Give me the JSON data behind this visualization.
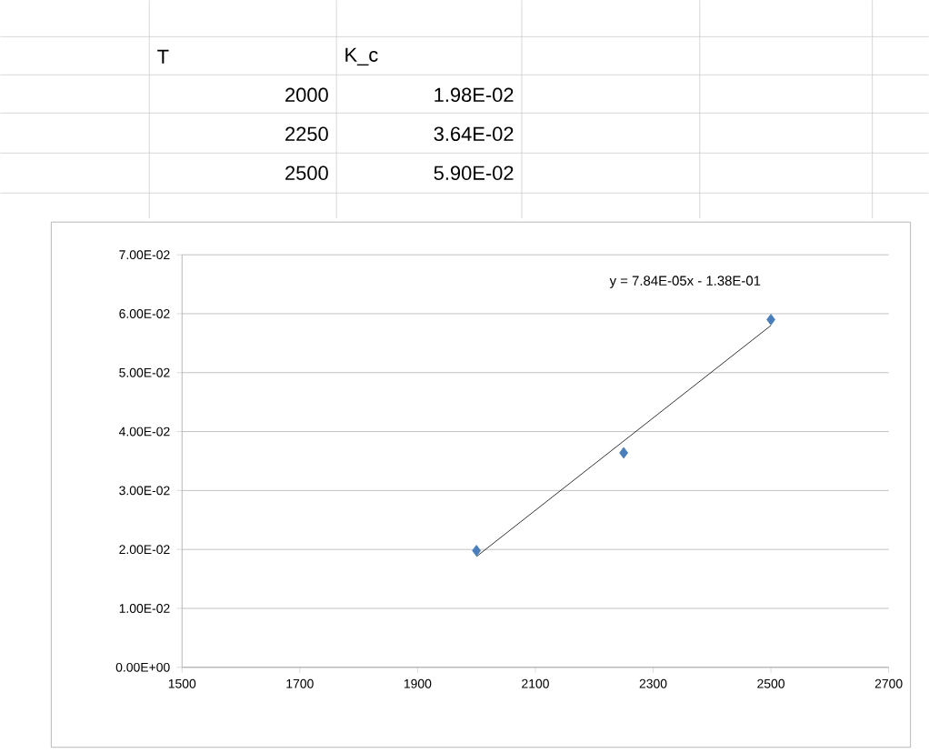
{
  "chart_data": {
    "type": "scatter",
    "series": [
      {
        "color": "#4a7ebb",
        "marker": "diamond",
        "x": [
          2000,
          2250,
          2500
        ],
        "values": [
          0.0198,
          0.0364,
          0.059
        ]
      },
      {
        "type": "line",
        "color": "#000000",
        "marker": "none",
        "line_style": "solid",
        "x": [
          2000,
          2500
        ],
        "values": [
          0.0188,
          0.058
        ]
      }
    ],
    "xlim": [
      1500,
      2700
    ],
    "xticks": [
      1500,
      1700,
      1900,
      2100,
      2300,
      2500,
      2700
    ],
    "ylim": [
      0,
      0.07
    ],
    "yticks": [
      {
        "value": 0,
        "label": "0.00E+00"
      },
      {
        "value": 0.01,
        "label": "1.00E-02"
      },
      {
        "value": 0.02,
        "label": "2.00E-02"
      },
      {
        "value": 0.03,
        "label": "3.00E-02"
      },
      {
        "value": 0.04,
        "label": "4.00E-02"
      },
      {
        "value": 0.05,
        "label": "5.00E-02"
      },
      {
        "value": 0.06,
        "label": "6.00E-02"
      },
      {
        "value": 0.07,
        "label": "7.00E-02"
      }
    ],
    "grid": "y",
    "annotations": [
      "y = 7.84E-05x - 1.38E-01",
      "T",
      "K_c",
      "2000",
      "1.98E-02",
      "2250",
      "3.64E-02",
      "2500",
      "5.90E-02"
    ]
  }
}
